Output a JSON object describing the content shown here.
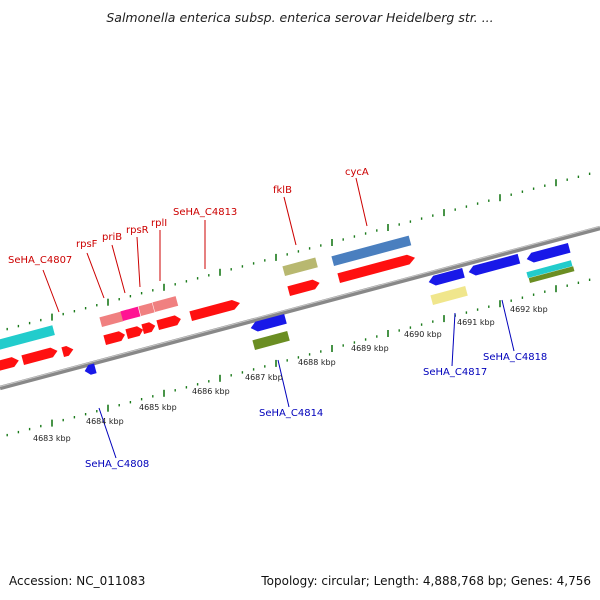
{
  "title": "Salmonella enterica subsp. enterica serovar Heidelberg str. ...",
  "footer": {
    "accession": "Accession: NC_011083",
    "stats": "Topology: circular; Length: 4,888,768 bp; Genes: 4,756"
  },
  "kbp_labels": [
    "4683 kbp",
    "4684 kbp",
    "4685 kbp",
    "4686 kbp",
    "4687 kbp",
    "4688 kbp",
    "4689 kbp",
    "4690 kbp",
    "4691 kbp",
    "4692 kbp"
  ],
  "forward_genes": [
    "SeHA_C4807",
    "rpsF",
    "priB",
    "rpsR",
    "rplI",
    "SeHA_C4813",
    "fklB",
    "cycA"
  ],
  "reverse_genes": [
    "SeHA_C4808",
    "SeHA_C4814",
    "SeHA_C4817",
    "SeHA_C4818"
  ],
  "colors": {
    "forward_label": "#cc0000",
    "reverse_label": "#0000bb",
    "backbone": "#888888",
    "tick": "#1a7a1a",
    "cds_red": "#ff1010",
    "cds_blue": "#1818e8",
    "cds_cyan": "#22cccc",
    "cds_steel": "#4a7fbf",
    "cds_khaki": "#b8b870",
    "cds_olive": "#6b8e23",
    "cds_pink": "#f08080",
    "cds_magenta": "#ff1493",
    "cds_yellow": "#f0e68c"
  }
}
